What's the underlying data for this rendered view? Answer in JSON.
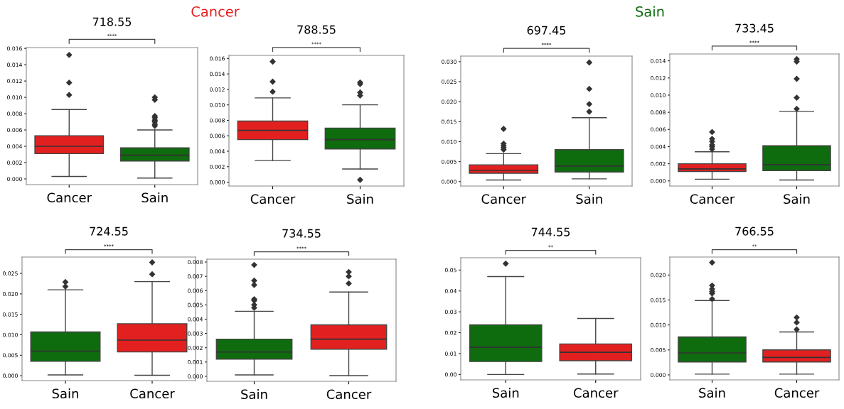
{
  "chart_data": [
    {
      "type": "box",
      "title": "718.55",
      "categories": [
        "Cancer",
        "Sain"
      ],
      "colors": [
        "#e32020",
        "#0e6b0e"
      ],
      "marker": "diamond",
      "annotations": [
        "Cancer",
        "****"
      ],
      "ylim": [
        -0.0007,
        0.0161
      ],
      "yticks": [
        {
          "value": 0,
          "label": "0.000"
        },
        {
          "value": 0.002,
          "label": "0.002"
        },
        {
          "value": 0.004,
          "label": "0.004"
        },
        {
          "value": 0.006,
          "label": "0.006"
        },
        {
          "value": 0.008,
          "label": "0.008"
        },
        {
          "value": 0.01,
          "label": "0.010"
        },
        {
          "value": 0.012,
          "label": "0.012"
        },
        {
          "value": 0.014,
          "label": "0.014"
        },
        {
          "value": 0.016,
          "label": "0.016"
        }
      ],
      "boxes": [
        {
          "low": 0.0003,
          "q1": 0.0031,
          "median": 0.004,
          "q3": 0.0053,
          "high": 0.0085,
          "outliers": [
            0.0152,
            0.0118,
            0.0103
          ]
        },
        {
          "low": 0.0001,
          "q1": 0.0022,
          "median": 0.0029,
          "q3": 0.0038,
          "high": 0.006,
          "outliers": [
            0.01,
            0.0097,
            0.0077,
            0.0075,
            0.0072,
            0.007,
            0.0067,
            0.0065
          ]
        }
      ]
    },
    {
      "type": "box",
      "title": "788.55",
      "categories": [
        "Cancer",
        "Sain"
      ],
      "colors": [
        "#e32020",
        "#0e6b0e"
      ],
      "marker": "diamond",
      "annotations": [
        "****"
      ],
      "ylim": [
        -0.0005,
        0.0164
      ],
      "yticks": [
        {
          "value": 0,
          "label": "0.000"
        },
        {
          "value": 0.002,
          "label": "0.002"
        },
        {
          "value": 0.004,
          "label": "0.004"
        },
        {
          "value": 0.006,
          "label": "0.006"
        },
        {
          "value": 0.008,
          "label": "0.008"
        },
        {
          "value": 0.01,
          "label": "0.010"
        },
        {
          "value": 0.012,
          "label": "0.012"
        },
        {
          "value": 0.014,
          "label": "0.014"
        },
        {
          "value": 0.016,
          "label": "0.016"
        }
      ],
      "boxes": [
        {
          "low": 0.0028,
          "q1": 0.0055,
          "median": 0.0067,
          "q3": 0.0079,
          "high": 0.0109,
          "outliers": [
            0.0156,
            0.013,
            0.0117
          ]
        },
        {
          "low": 0.0017,
          "q1": 0.0043,
          "median": 0.0055,
          "q3": 0.007,
          "high": 0.01,
          "outliers": [
            0.0129,
            0.0127,
            0.0116,
            0.0112,
            0.0003
          ]
        }
      ]
    },
    {
      "type": "box",
      "title": "697.45",
      "categories": [
        "Cancer",
        "Sain"
      ],
      "colors": [
        "#e32020",
        "#0e6b0e"
      ],
      "marker": "diamond",
      "annotations": [
        "Sain",
        "****"
      ],
      "ylim": [
        -0.0011,
        0.0314
      ],
      "yticks": [
        {
          "value": 0,
          "label": "0.000"
        },
        {
          "value": 0.005,
          "label": "0.005"
        },
        {
          "value": 0.01,
          "label": "0.010"
        },
        {
          "value": 0.015,
          "label": "0.015"
        },
        {
          "value": 0.02,
          "label": "0.020"
        },
        {
          "value": 0.025,
          "label": "0.025"
        },
        {
          "value": 0.03,
          "label": "0.030"
        }
      ],
      "boxes": [
        {
          "low": 0.0004,
          "q1": 0.0021,
          "median": 0.0028,
          "q3": 0.0042,
          "high": 0.007,
          "outliers": [
            0.0132,
            0.0095,
            0.009,
            0.0085,
            0.008
          ]
        },
        {
          "low": 0.0007,
          "q1": 0.0024,
          "median": 0.0039,
          "q3": 0.008,
          "high": 0.016,
          "outliers": [
            0.0298,
            0.0232,
            0.0194,
            0.0175
          ]
        }
      ]
    },
    {
      "type": "box",
      "title": "733.45",
      "categories": [
        "Cancer",
        "Sain"
      ],
      "colors": [
        "#e32020",
        "#0e6b0e"
      ],
      "marker": "diamond",
      "annotations": [
        "****"
      ],
      "ylim": [
        -0.0006,
        0.0148
      ],
      "yticks": [
        {
          "value": 0,
          "label": "0.000"
        },
        {
          "value": 0.002,
          "label": "0.002"
        },
        {
          "value": 0.004,
          "label": "0.004"
        },
        {
          "value": 0.006,
          "label": "0.006"
        },
        {
          "value": 0.008,
          "label": "0.008"
        },
        {
          "value": 0.01,
          "label": "0.010"
        },
        {
          "value": 0.012,
          "label": "0.012"
        },
        {
          "value": 0.014,
          "label": "0.014"
        }
      ],
      "boxes": [
        {
          "low": 0.0002,
          "q1": 0.0011,
          "median": 0.0014,
          "q3": 0.002,
          "high": 0.0034,
          "outliers": [
            0.0057,
            0.0049,
            0.0046,
            0.0042,
            0.004,
            0.0037
          ]
        },
        {
          "low": 0.0001,
          "q1": 0.0012,
          "median": 0.0019,
          "q3": 0.0041,
          "high": 0.0081,
          "outliers": [
            0.0142,
            0.0139,
            0.0119,
            0.0097,
            0.0084
          ]
        }
      ]
    },
    {
      "type": "box",
      "title": "724.55",
      "categories": [
        "Sain",
        "Cancer"
      ],
      "colors": [
        "#0e6b0e",
        "#e32020"
      ],
      "marker": "diamond",
      "annotations": [
        "****"
      ],
      "ylim": [
        -0.0012,
        0.029
      ],
      "yticks": [
        {
          "value": 0,
          "label": "0.000"
        },
        {
          "value": 0.005,
          "label": "0.005"
        },
        {
          "value": 0.01,
          "label": "0.010"
        },
        {
          "value": 0.015,
          "label": "0.015"
        },
        {
          "value": 0.02,
          "label": "0.020"
        },
        {
          "value": 0.025,
          "label": "0.025"
        }
      ],
      "boxes": [
        {
          "low": 0.0002,
          "q1": 0.0035,
          "median": 0.006,
          "q3": 0.0107,
          "high": 0.021,
          "outliers": [
            0.0229,
            0.0218
          ]
        },
        {
          "low": 0.0001,
          "q1": 0.0058,
          "median": 0.0087,
          "q3": 0.0127,
          "high": 0.023,
          "outliers": [
            0.0277,
            0.0248
          ]
        }
      ]
    },
    {
      "type": "box",
      "title": "734.55",
      "categories": [
        "Sain",
        "Cancer"
      ],
      "colors": [
        "#0e6b0e",
        "#e32020"
      ],
      "marker": "diamond",
      "annotations": [
        "****"
      ],
      "ylim": [
        -0.00035,
        0.0082
      ],
      "yticks": [
        {
          "value": 0,
          "label": "0.000"
        },
        {
          "value": 0.001,
          "label": "0.001"
        },
        {
          "value": 0.002,
          "label": "0.002"
        },
        {
          "value": 0.003,
          "label": "0.003"
        },
        {
          "value": 0.004,
          "label": "0.004"
        },
        {
          "value": 0.005,
          "label": "0.005"
        },
        {
          "value": 0.006,
          "label": "0.006"
        },
        {
          "value": 0.007,
          "label": "0.007"
        },
        {
          "value": 0.008,
          "label": "0.008"
        }
      ],
      "boxes": [
        {
          "low": 0.0001,
          "q1": 0.0012,
          "median": 0.0017,
          "q3": 0.0026,
          "high": 0.00455,
          "outliers": [
            0.0078,
            0.0067,
            0.0064,
            0.0054,
            0.0053,
            0.005,
            0.0048
          ]
        },
        {
          "low": 5e-05,
          "q1": 0.0019,
          "median": 0.0026,
          "q3": 0.0036,
          "high": 0.0059,
          "outliers": [
            0.0073,
            0.007,
            0.0065
          ]
        }
      ]
    },
    {
      "type": "box",
      "title": "744.55",
      "categories": [
        "Sain",
        "Cancer"
      ],
      "colors": [
        "#0e6b0e",
        "#e32020"
      ],
      "marker": "diamond",
      "annotations": [
        "**"
      ],
      "ylim": [
        -0.0026,
        0.0559
      ],
      "yticks": [
        {
          "value": 0,
          "label": "0.00"
        },
        {
          "value": 0.01,
          "label": "0.01"
        },
        {
          "value": 0.02,
          "label": "0.02"
        },
        {
          "value": 0.03,
          "label": "0.03"
        },
        {
          "value": 0.04,
          "label": "0.04"
        },
        {
          "value": 0.05,
          "label": "0.05"
        }
      ],
      "boxes": [
        {
          "low": 0.0,
          "q1": 0.0062,
          "median": 0.013,
          "q3": 0.0238,
          "high": 0.0469,
          "outliers": [
            0.0531
          ]
        },
        {
          "low": 0.0002,
          "q1": 0.0066,
          "median": 0.0106,
          "q3": 0.0146,
          "high": 0.0268
        }
      ]
    },
    {
      "type": "box",
      "title": "766.55",
      "categories": [
        "Sain",
        "Cancer"
      ],
      "colors": [
        "#0e6b0e",
        "#e32020"
      ],
      "marker": "diamond",
      "annotations": [
        "**"
      ],
      "ylim": [
        -0.001,
        0.0236
      ],
      "yticks": [
        {
          "value": 0,
          "label": "0.000"
        },
        {
          "value": 0.005,
          "label": "0.005"
        },
        {
          "value": 0.01,
          "label": "0.010"
        },
        {
          "value": 0.015,
          "label": "0.015"
        },
        {
          "value": 0.02,
          "label": "0.020"
        }
      ],
      "boxes": [
        {
          "low": 0.00015,
          "q1": 0.0026,
          "median": 0.0044,
          "q3": 0.0076,
          "high": 0.0149,
          "outliers": [
            0.0225,
            0.0179,
            0.0172,
            0.0167,
            0.0163,
            0.0152
          ]
        },
        {
          "low": 0.00015,
          "q1": 0.0026,
          "median": 0.0035,
          "q3": 0.005,
          "high": 0.0086,
          "outliers": [
            0.0115,
            0.0105,
            0.0091
          ]
        }
      ]
    }
  ]
}
